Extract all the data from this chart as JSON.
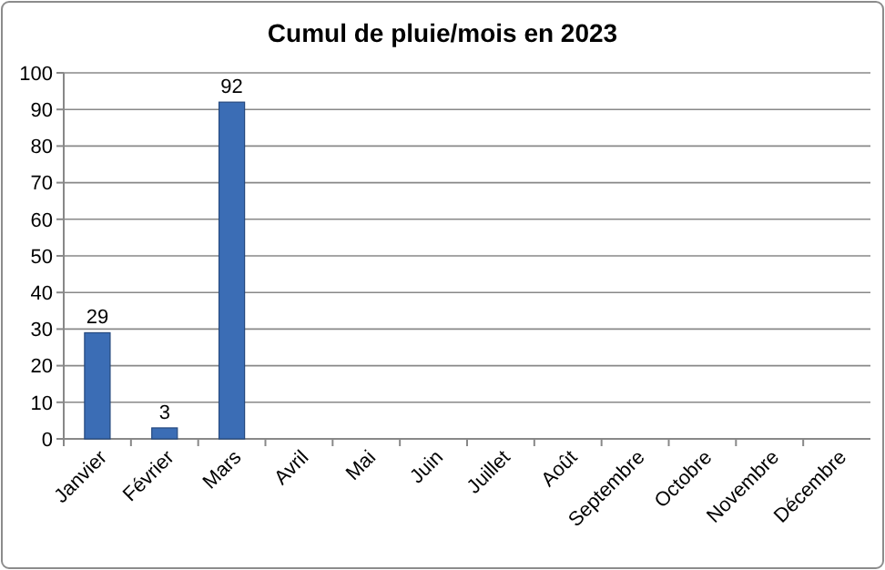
{
  "chart_data": {
    "type": "bar",
    "title": "Cumul de pluie/mois en 2023",
    "categories": [
      "Janvier",
      "Février",
      "Mars",
      "Avril",
      "Mai",
      "Juin",
      "Juillet",
      "Août",
      "Septembre",
      "Octobre",
      "Novembre",
      "Décembre"
    ],
    "values": [
      29,
      3,
      92,
      null,
      null,
      null,
      null,
      null,
      null,
      null,
      null,
      null
    ],
    "color": "#3b6db5",
    "ylim": [
      0,
      100
    ],
    "yticks": [
      0,
      10,
      20,
      30,
      40,
      50,
      60,
      70,
      80,
      90,
      100
    ],
    "grid": "y",
    "data_labels": true
  }
}
